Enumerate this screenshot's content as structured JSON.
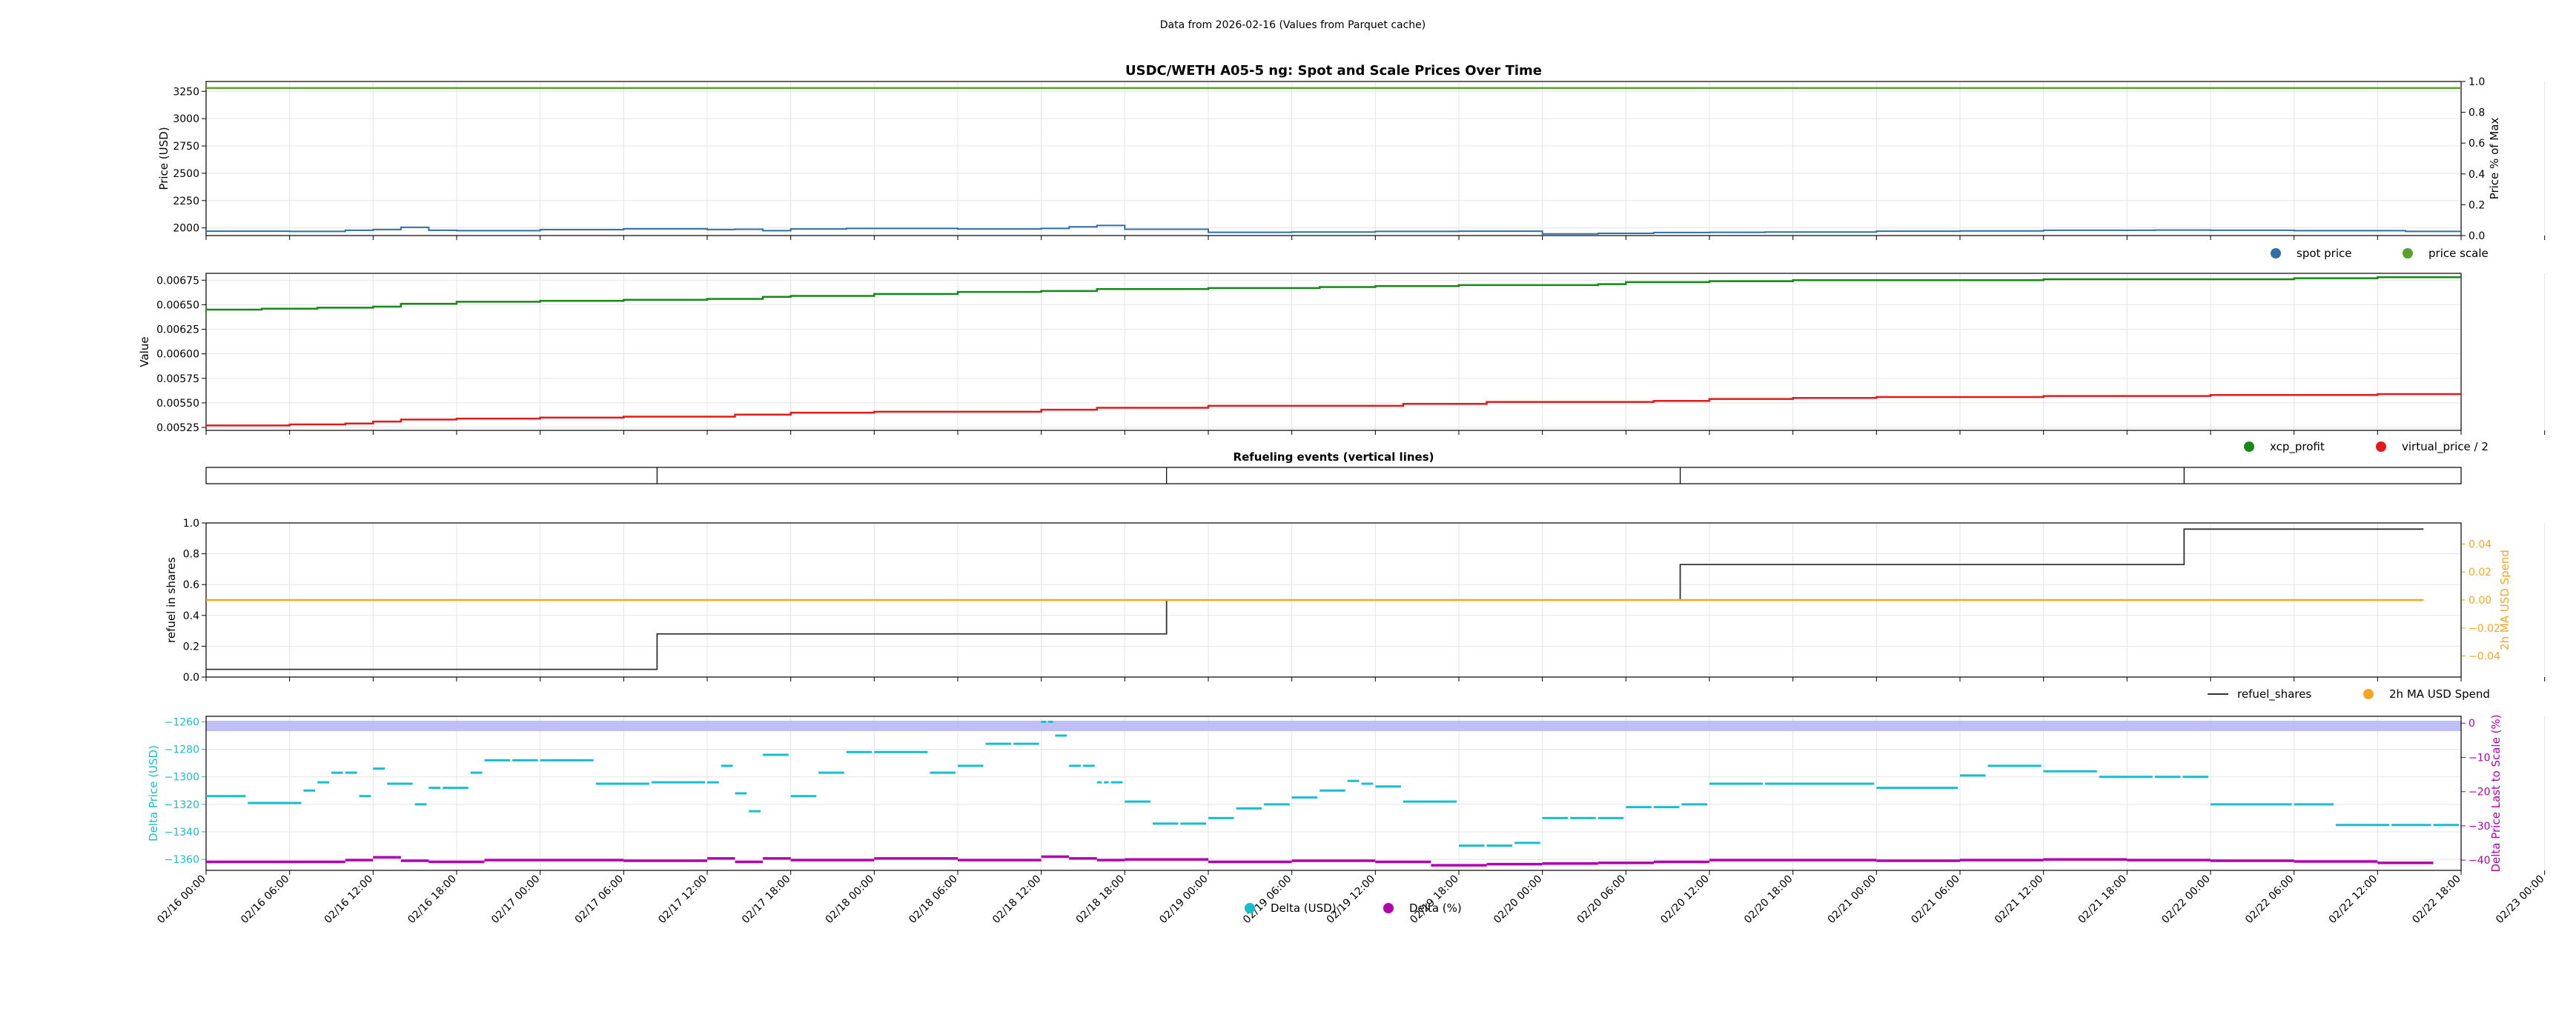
{
  "suptitle": "Data from 2026-02-16 (Values from Parquet cache)",
  "x_tick_labels": [
    "02/16 00:00",
    "02/16 06:00",
    "02/16 12:00",
    "02/16 18:00",
    "02/17 00:00",
    "02/17 06:00",
    "02/17 12:00",
    "02/17 18:00",
    "02/18 00:00",
    "02/18 06:00",
    "02/18 12:00",
    "02/18 18:00",
    "02/19 00:00",
    "02/19 06:00",
    "02/19 12:00",
    "02/19 18:00",
    "02/20 00:00",
    "02/20 06:00",
    "02/20 12:00",
    "02/20 18:00",
    "02/21 00:00",
    "02/21 06:00",
    "02/21 12:00",
    "02/21 18:00",
    "02/22 00:00",
    "02/22 06:00",
    "02/22 12:00",
    "02/22 18:00",
    "02/23 00:00"
  ],
  "colors": {
    "spot": "#2f6fa7",
    "scale": "#5aa02c",
    "xcp": "#138a13",
    "virtual": "#e31a1c",
    "refuel": "#333333",
    "ma": "#f5a623",
    "delta_usd": "#17becf",
    "delta_pct": "#b000b0",
    "band": "#b8b8f5"
  },
  "chart_data": [
    {
      "type": "line",
      "title": "USDC/WETH A05-5 ng: Spot and Scale Prices Over Time",
      "ylabel": "Price (USD)",
      "ylabel_right": "Price % of Max",
      "ylim": [
        1930,
        3340
      ],
      "ylim_right": [
        0.0,
        1.0
      ],
      "yticks": [
        "2000",
        "2250",
        "2500",
        "2750",
        "3000",
        "3250"
      ],
      "yticks_right": [
        "0.0",
        "0.2",
        "0.4",
        "0.6",
        "0.8",
        "1.0"
      ],
      "series": [
        {
          "name": "spot price",
          "x_hours": [
            0,
            6,
            10,
            12,
            14,
            16,
            18,
            24,
            30,
            36,
            38,
            40,
            42,
            46,
            54,
            60,
            62,
            64,
            66,
            72,
            78,
            84,
            90,
            96,
            100,
            104,
            108,
            112,
            120,
            126,
            132,
            136,
            140,
            144,
            150,
            158,
            162
          ],
          "values": [
            1970,
            1968,
            1978,
            1985,
            2005,
            1978,
            1975,
            1984,
            1992,
            1985,
            1988,
            1975,
            1990,
            1995,
            1990,
            1995,
            2010,
            2022,
            1988,
            1960,
            1962,
            1968,
            1970,
            1945,
            1950,
            1958,
            1960,
            1962,
            1970,
            1972,
            1978,
            1978,
            1980,
            1978,
            1975,
            1968,
            1960
          ]
        },
        {
          "name": "price scale",
          "x_hours": [
            0,
            162
          ],
          "values": [
            3280,
            3280
          ]
        }
      ],
      "legend": "below-right"
    },
    {
      "type": "line",
      "ylabel": "Value",
      "ylim": [
        0.00522,
        0.00682
      ],
      "yticks": [
        "0.00525",
        "0.00550",
        "0.00575",
        "0.00600",
        "0.00625",
        "0.00650",
        "0.00675"
      ],
      "series": [
        {
          "name": "xcp_profit",
          "x_hours": [
            0,
            4,
            8,
            12,
            14,
            18,
            24,
            30,
            36,
            40,
            42,
            48,
            54,
            60,
            64,
            72,
            80,
            84,
            90,
            100,
            102,
            108,
            114,
            120,
            126,
            132,
            138,
            144,
            150,
            156,
            162
          ],
          "values": [
            0.00645,
            0.00646,
            0.00647,
            0.00648,
            0.00651,
            0.00653,
            0.00654,
            0.00655,
            0.00656,
            0.00658,
            0.00659,
            0.00661,
            0.00663,
            0.00664,
            0.00666,
            0.00667,
            0.00668,
            0.00669,
            0.0067,
            0.00671,
            0.00673,
            0.00674,
            0.00675,
            0.00675,
            0.00675,
            0.00676,
            0.00676,
            0.00676,
            0.00677,
            0.00678,
            0.00678
          ]
        },
        {
          "name": "virtual_price / 2",
          "x_hours": [
            0,
            6,
            10,
            12,
            14,
            18,
            24,
            30,
            36,
            38,
            42,
            48,
            54,
            60,
            64,
            72,
            80,
            86,
            92,
            100,
            104,
            108,
            114,
            120,
            126,
            132,
            138,
            144,
            150,
            156,
            162
          ],
          "values": [
            0.00527,
            0.00528,
            0.00529,
            0.00531,
            0.00533,
            0.00534,
            0.00535,
            0.00536,
            0.00536,
            0.00538,
            0.0054,
            0.00541,
            0.00541,
            0.00543,
            0.00545,
            0.00547,
            0.00547,
            0.00549,
            0.00551,
            0.00551,
            0.00552,
            0.00554,
            0.00555,
            0.00556,
            0.00556,
            0.00557,
            0.00557,
            0.00558,
            0.00558,
            0.00559,
            0.00559
          ]
        }
      ],
      "legend": "below-right"
    },
    {
      "type": "event-lines",
      "title": "Refueling events (vertical lines)",
      "events_hours": [
        32.4,
        69.0,
        105.9,
        142.1
      ]
    },
    {
      "type": "line",
      "ylabel": "refuel in shares",
      "ylabel_right": "2h MA USD Spend",
      "ylim": [
        0.0,
        1.0
      ],
      "ylim_right": [
        -0.055,
        0.055
      ],
      "yticks": [
        "0.0",
        "0.2",
        "0.4",
        "0.6",
        "0.8",
        "1.0"
      ],
      "yticks_right": [
        "−0.04",
        "−0.02",
        "0.00",
        "0.02",
        "0.04"
      ],
      "series": [
        {
          "name": "refuel_shares",
          "steps_at_hours": [
            0,
            32.4,
            69.0,
            105.9,
            142.1,
            159.3
          ],
          "values": [
            0.05,
            0.28,
            0.5,
            0.73,
            0.96,
            0.96
          ]
        },
        {
          "name": "2h MA USD Spend",
          "x_hours": [
            0,
            159.3
          ],
          "values": [
            0.0,
            0.0
          ]
        }
      ],
      "legend": "below-right"
    },
    {
      "type": "scatter",
      "ylabel": "Delta Price (USD)",
      "ylabel_right": "Delta Price Last to Scale (%)",
      "ylim": [
        -1368,
        -1256
      ],
      "ylim_right": [
        -43,
        2
      ],
      "yticks": [
        "−1360",
        "−1340",
        "−1320",
        "−1300",
        "−1280",
        "−1260"
      ],
      "yticks_right": [
        "−40",
        "−30",
        "−20",
        "−10",
        "0"
      ],
      "series": [
        {
          "name": "Delta (USD)",
          "x_hours": [
            0,
            3,
            7,
            8,
            9,
            10,
            11,
            12,
            13,
            15,
            16,
            17,
            19,
            20,
            22,
            24,
            28,
            32,
            36,
            37,
            38,
            39,
            40,
            42,
            44,
            46,
            48,
            52,
            54,
            56,
            58,
            60,
            60.5,
            61,
            62,
            63,
            64,
            64.5,
            65,
            66,
            68,
            70,
            72,
            74,
            76,
            78,
            80,
            82,
            83,
            84,
            86,
            90,
            92,
            94,
            96,
            98,
            100,
            102,
            104,
            106,
            108,
            112,
            120,
            126,
            128,
            132,
            136,
            140,
            142,
            144,
            150,
            153,
            157,
            160
          ],
          "values": [
            -1314,
            -1319,
            -1310,
            -1304,
            -1297,
            -1297,
            -1314,
            -1294,
            -1305,
            -1320,
            -1308,
            -1308,
            -1297,
            -1288,
            -1288,
            -1288,
            -1305,
            -1304,
            -1304,
            -1292,
            -1312,
            -1325,
            -1284,
            -1314,
            -1297,
            -1282,
            -1282,
            -1297,
            -1292,
            -1276,
            -1276,
            -1260,
            -1260,
            -1270,
            -1292,
            -1292,
            -1304,
            -1304,
            -1304,
            -1318,
            -1334,
            -1334,
            -1330,
            -1323,
            -1320,
            -1315,
            -1310,
            -1303,
            -1305,
            -1307,
            -1318,
            -1350,
            -1350,
            -1348,
            -1330,
            -1330,
            -1330,
            -1322,
            -1322,
            -1320,
            -1305,
            -1305,
            -1308,
            -1299,
            -1292,
            -1296,
            -1300,
            -1300,
            -1300,
            -1320,
            -1320,
            -1335,
            -1335,
            -1335
          ]
        },
        {
          "name": "Delta (%)",
          "x_hours": [
            0,
            10,
            12,
            14,
            16,
            20,
            24,
            30,
            36,
            38,
            40,
            42,
            48,
            54,
            60,
            62,
            64,
            66,
            72,
            78,
            84,
            88,
            92,
            96,
            100,
            104,
            108,
            114,
            120,
            126,
            132,
            138,
            144,
            150,
            156,
            160
          ],
          "values": [
            -40.5,
            -40.0,
            -39.2,
            -40.2,
            -40.5,
            -40.0,
            -40.0,
            -40.2,
            -39.5,
            -40.5,
            -39.5,
            -40.0,
            -39.5,
            -40.0,
            -39.0,
            -39.5,
            -40.0,
            -39.8,
            -40.5,
            -40.2,
            -40.5,
            -41.5,
            -41.2,
            -41.0,
            -40.8,
            -40.5,
            -40.0,
            -40.0,
            -40.2,
            -40.0,
            -39.8,
            -40.0,
            -40.2,
            -40.4,
            -40.8,
            -41.0
          ]
        }
      ],
      "legend": "below-center"
    }
  ]
}
